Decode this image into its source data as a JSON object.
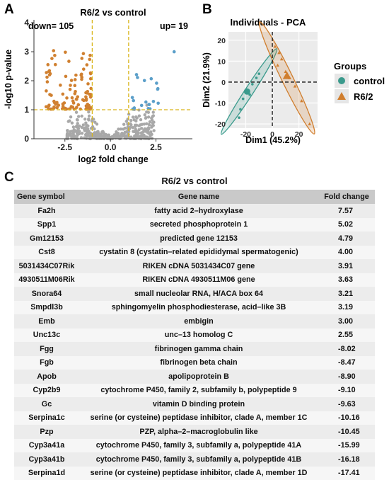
{
  "panel_letters": {
    "a": "A",
    "b": "B",
    "c": "C"
  },
  "colors": {
    "control": "#3a9a8c",
    "r62": "#d07e2e",
    "up": "#5b9fc9",
    "down": "#d08030",
    "ns": "#a8a8a8",
    "threshold": "#d9b51a",
    "table_header": "#c9c9c9"
  },
  "chart_data": [
    {
      "type": "scatter",
      "title": "R6/2 vs control",
      "xlabel": "log2 fold change",
      "ylabel": "-log10 p-value",
      "xlim": [
        -4.2,
        4.5
      ],
      "ylim": [
        0,
        4.1
      ],
      "x_ticks": [
        "-2.5",
        "0.0",
        "2.5"
      ],
      "y_ticks": [
        "0",
        "1",
        "2",
        "3",
        "4"
      ],
      "thresholds": {
        "x": [
          -1,
          1
        ],
        "y": 1
      },
      "annotations": {
        "down": "down= 105",
        "up": "up= 19"
      },
      "series": [
        {
          "group": "down",
          "count": 105
        },
        {
          "group": "up",
          "count": 19
        },
        {
          "group": "not significant"
        }
      ],
      "grid": false
    },
    {
      "type": "scatter",
      "title": "Individuals - PCA",
      "xlabel": "Dim1 (45.2%)",
      "ylabel": "Dim2 (21.9%)",
      "xlim": [
        -33,
        34
      ],
      "ylim": [
        -22,
        24
      ],
      "x_ticks": [
        "-20",
        "0",
        "20"
      ],
      "y_ticks": [
        "-20",
        "-10",
        "0",
        "10",
        "20"
      ],
      "legend": {
        "title": "Groups",
        "placement": "right"
      },
      "series": [
        {
          "name": "control",
          "marker": "circle",
          "points": [
            [
              -25,
              -17
            ],
            [
              -24,
              -13
            ],
            [
              -22,
              -8
            ],
            [
              -20,
              -5
            ],
            [
              -15,
              -1
            ],
            [
              -17,
              -6
            ],
            [
              -12,
              2
            ],
            [
              -10,
              4
            ]
          ],
          "centroid": [
            -19,
            -4.5
          ]
        },
        {
          "name": "R6/2",
          "marker": "triangle",
          "points": [
            [
              2,
              17
            ],
            [
              5,
              14
            ],
            [
              7,
              11
            ],
            [
              4,
              8
            ],
            [
              10,
              5
            ],
            [
              13,
              2
            ],
            [
              17,
              -2
            ],
            [
              22,
              -9
            ],
            [
              28,
              -20
            ]
          ],
          "centroid": [
            11,
            3
          ]
        }
      ],
      "grid": true
    }
  ],
  "table": {
    "title": "R6/2 vs control",
    "headers": [
      "Gene symbol",
      "Gene name",
      "Fold change"
    ],
    "rows": [
      [
        "Fa2h",
        "fatty acid 2–hydroxylase",
        "7.57"
      ],
      [
        "Spp1",
        "secreted phosphoprotein 1",
        "5.02"
      ],
      [
        "Gm12153",
        "predicted gene 12153",
        "4.79"
      ],
      [
        "Cst8",
        "cystatin 8 (cystatin–related epididymal spermatogenic)",
        "4.00"
      ],
      [
        "5031434C07Rik",
        "RIKEN cDNA 5031434C07 gene",
        "3.91"
      ],
      [
        "4930511M06Rik",
        "RIKEN cDNA 4930511M06 gene",
        "3.63"
      ],
      [
        "Snora64",
        "small nucleolar RNA, H/ACA box 64",
        "3.21"
      ],
      [
        "Smpdl3b",
        "sphingomyelin phosphodiesterase, acid–like 3B",
        "3.19"
      ],
      [
        "Emb",
        "embigin",
        "3.00"
      ],
      [
        "Unc13c",
        "unc–13 homolog C",
        "2.55"
      ],
      [
        "Fgg",
        "fibrinogen gamma chain",
        "-8.02"
      ],
      [
        "Fgb",
        "fibrinogen beta chain",
        "-8.47"
      ],
      [
        "Apob",
        "apolipoprotein B",
        "-8.90"
      ],
      [
        "Cyp2b9",
        "cytochrome P450, family 2, subfamily b, polypeptide 9",
        "-9.10"
      ],
      [
        "Gc",
        "vitamin D binding protein",
        "-9.63"
      ],
      [
        "Serpina1c",
        "serine (or cysteine) peptidase inhibitor, clade A, member 1C",
        "-10.16"
      ],
      [
        "Pzp",
        "PZP, alpha–2–macroglobulin like",
        "-10.45"
      ],
      [
        "Cyp3a41a",
        "cytochrome P450, family 3, subfamily a, polypeptide 41A",
        "-15.99"
      ],
      [
        "Cyp3a41b",
        "cytochrome P450, family 3, subfamily a, polypeptide 41B",
        "-16.18"
      ],
      [
        "Serpina1d",
        "serine (or cysteine) peptidase inhibitor, clade A, member 1D",
        "-17.41"
      ]
    ]
  }
}
